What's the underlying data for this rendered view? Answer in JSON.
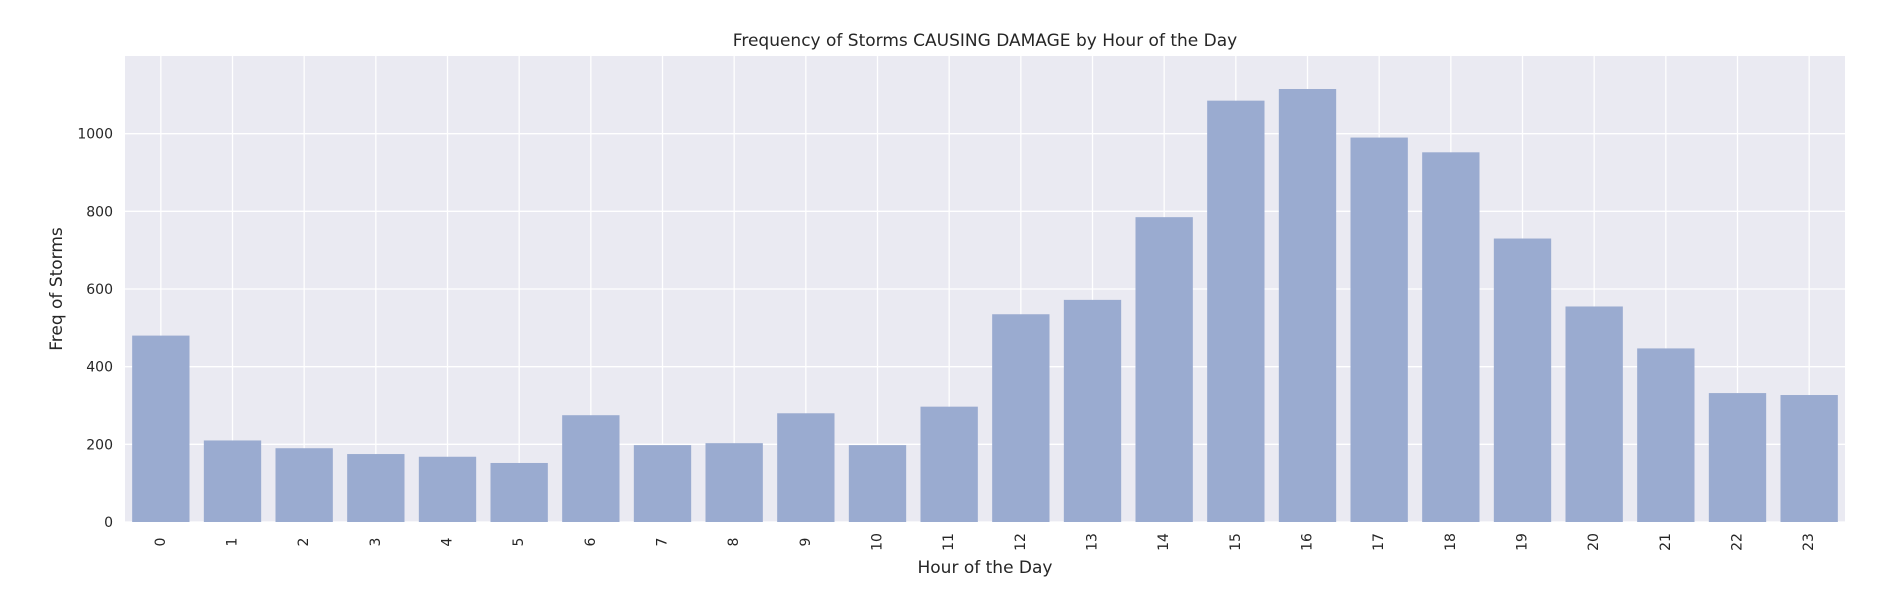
{
  "chart_data": {
    "type": "bar",
    "title": "Frequency of Storms CAUSING DAMAGE by Hour of the Day",
    "xlabel": "Hour of the Day",
    "ylabel": "Freq of Storms",
    "categories": [
      "0",
      "1",
      "2",
      "3",
      "4",
      "5",
      "6",
      "7",
      "8",
      "9",
      "10",
      "11",
      "12",
      "13",
      "14",
      "15",
      "16",
      "17",
      "18",
      "19",
      "20",
      "21",
      "22",
      "23"
    ],
    "values": [
      480,
      210,
      190,
      175,
      168,
      152,
      275,
      198,
      203,
      280,
      198,
      297,
      535,
      572,
      785,
      1085,
      1115,
      990,
      952,
      730,
      555,
      447,
      332,
      327
    ],
    "ylim": [
      0,
      1200
    ],
    "yticks": [
      0,
      200,
      400,
      600,
      800,
      1000
    ],
    "ytick_labels": [
      "0",
      "200",
      "400",
      "600",
      "800",
      "1000"
    ],
    "grid": true,
    "style": "seaborn-darkgrid",
    "colors": {
      "bar": "#9aabd0",
      "background": "#eaeaf2",
      "grid": "#ffffff"
    }
  }
}
